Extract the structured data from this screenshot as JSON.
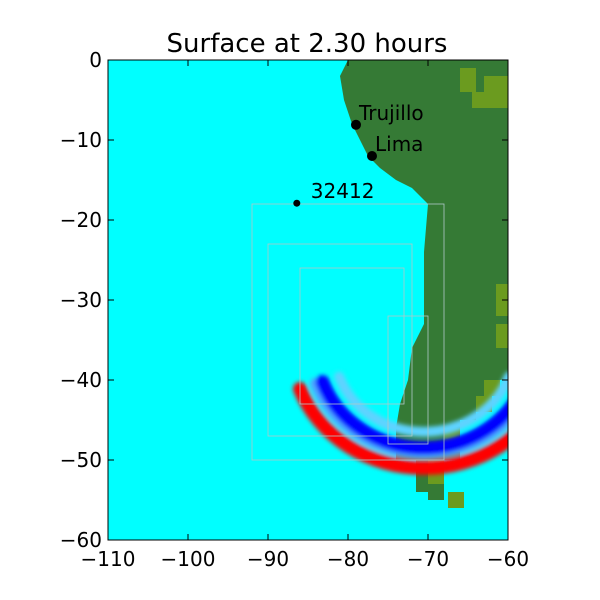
{
  "chart_data": {
    "type": "heatmap",
    "title": "Surface at 2.30 hours",
    "xlabel": "",
    "ylabel": "",
    "xlim": [
      -110,
      -60
    ],
    "ylim": [
      -60,
      0
    ],
    "xticks": [
      -110,
      -100,
      -90,
      -80,
      -70,
      -60
    ],
    "yticks": [
      0,
      -10,
      -20,
      -30,
      -40,
      -50,
      -60
    ],
    "xtick_labels": [
      "−110",
      "−100",
      "−90",
      "−80",
      "−70",
      "−60"
    ],
    "ytick_labels": [
      "0",
      "−10",
      "−20",
      "−30",
      "−40",
      "−50",
      "−60"
    ],
    "grid": false,
    "colors": {
      "ocean": "#00ffff",
      "land": "#357a35",
      "highland": "#6b9b1f",
      "wave_crest": "#ff0000",
      "wave_trough": "#0000ff",
      "refinement_box": "#b0c8c8"
    },
    "points": [
      {
        "label": "Trujillo",
        "x": -79.0,
        "y": -8.1
      },
      {
        "label": "Lima",
        "x": -77.0,
        "y": -12.0
      },
      {
        "label": "32412",
        "x": -86.4,
        "y": -17.9
      }
    ],
    "wave_front": {
      "center": [
        -70.5,
        -36.0
      ],
      "outer_radius_deg": [
        16.5,
        15.0
      ],
      "inner_radius_deg": [
        13.5,
        12.5
      ],
      "description_color": "red crest, cyan/blue trough"
    },
    "refinement_regions": [
      {
        "x": [
          -92,
          -68
        ],
        "y": [
          -50,
          -18
        ]
      },
      {
        "x": [
          -90,
          -72
        ],
        "y": [
          -47,
          -23
        ]
      },
      {
        "x": [
          -86,
          -73
        ],
        "y": [
          -43,
          -26
        ]
      },
      {
        "x": [
          -75,
          -70
        ],
        "y": [
          -48,
          -32
        ]
      }
    ]
  }
}
